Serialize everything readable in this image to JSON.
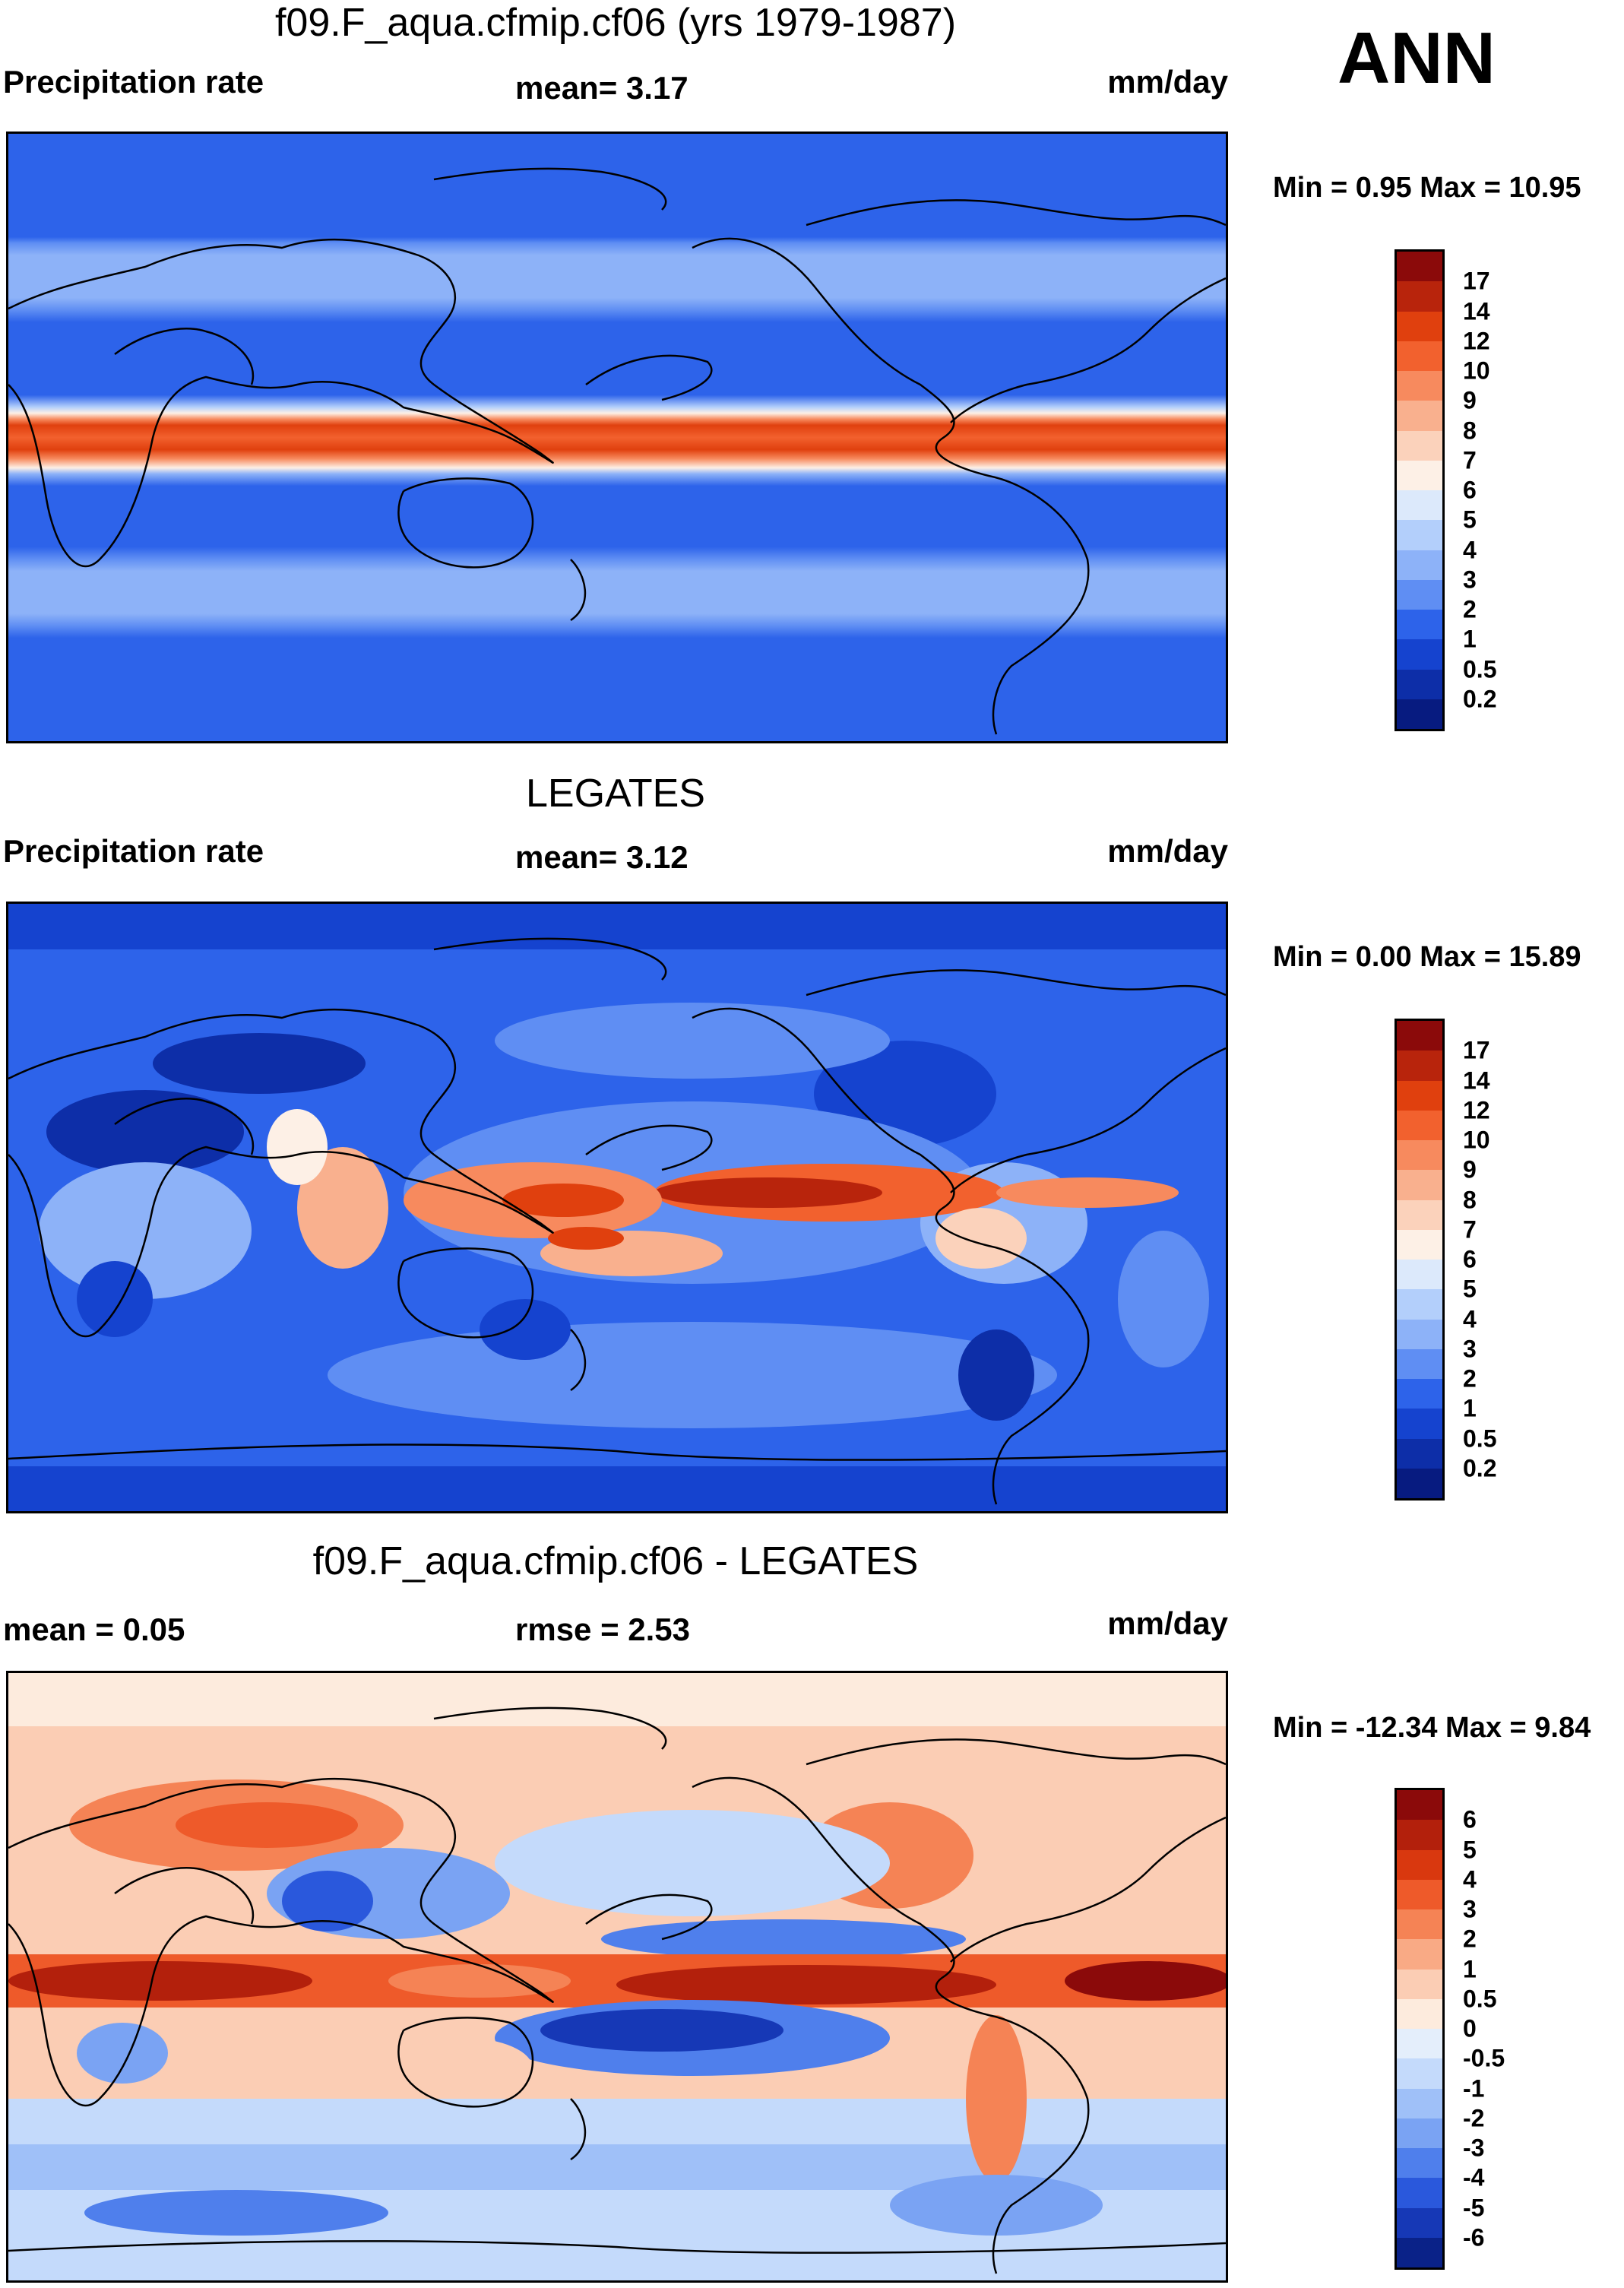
{
  "season": "ANN",
  "panels": [
    {
      "title": "f09.F_aqua.cfmip.cf06 (yrs 1979-1987)",
      "left_label": "Precipitation rate",
      "center_label": "mean=   3.17",
      "right_label": "mm/day",
      "minmax": "Min =    0.95 Max =  10.95",
      "colorbar": {
        "levels": [
          "17",
          "14",
          "12",
          "10",
          "9",
          "8",
          "7",
          "6",
          "5",
          "4",
          "3",
          "2",
          "1",
          "0.5",
          "0.2"
        ],
        "colors": [
          "#8b0a0a",
          "#b8240c",
          "#e0400e",
          "#f2612e",
          "#f78a5e",
          "#f9b08e",
          "#fbd2bb",
          "#fdf0e6",
          "#dce9fb",
          "#b3cffb",
          "#8db2f8",
          "#5f8ef3",
          "#2d63ea",
          "#1543cf",
          "#0d2ea8",
          "#071b80"
        ]
      }
    },
    {
      "title": "LEGATES",
      "left_label": "Precipitation rate",
      "center_label": "mean=   3.12",
      "right_label": "mm/day",
      "minmax": "Min =    0.00 Max =  15.89",
      "colorbar": {
        "levels": [
          "17",
          "14",
          "12",
          "10",
          "9",
          "8",
          "7",
          "6",
          "5",
          "4",
          "3",
          "2",
          "1",
          "0.5",
          "0.2"
        ],
        "colors": [
          "#8b0a0a",
          "#b8240c",
          "#e0400e",
          "#f2612e",
          "#f78a5e",
          "#f9b08e",
          "#fbd2bb",
          "#fdf0e6",
          "#dce9fb",
          "#b3cffb",
          "#8db2f8",
          "#5f8ef3",
          "#2d63ea",
          "#1543cf",
          "#0d2ea8",
          "#071b80"
        ]
      }
    },
    {
      "title": "f09.F_aqua.cfmip.cf06 - LEGATES",
      "left_label": "mean =    0.05",
      "center_label": "rmse =    2.53",
      "right_label": "mm/day",
      "minmax": "Min = -12.34 Max =    9.84",
      "colorbar": {
        "levels": [
          "6",
          "5",
          "4",
          "3",
          "2",
          "1",
          "0.5",
          "0",
          "-0.5",
          "-1",
          "-2",
          "-3",
          "-4",
          "-5",
          "-6"
        ],
        "colors": [
          "#8b0a0a",
          "#b3200c",
          "#d9380f",
          "#ee5a2a",
          "#f58355",
          "#f9aa85",
          "#fbcdb4",
          "#fdebdd",
          "#e4eefb",
          "#c4dafb",
          "#9fc0f8",
          "#7aa3f3",
          "#4f7fec",
          "#2a58dc",
          "#1638b6",
          "#0a2288"
        ]
      }
    }
  ]
}
